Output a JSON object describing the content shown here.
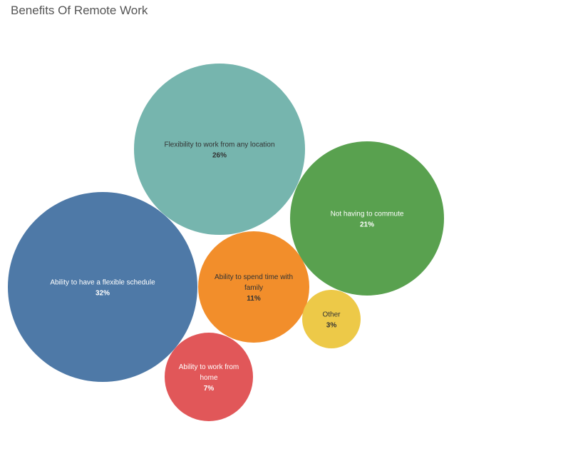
{
  "chart_data": {
    "type": "bubble",
    "title": "Benefits Of Remote Work",
    "series": [
      {
        "name": "Ability to have a flexible schedule",
        "value_label": "32%",
        "value": 32,
        "color": "#4e79a7",
        "text_color": "#ffffff"
      },
      {
        "name": "Flexibility to work from any location",
        "value_label": "26%",
        "value": 26,
        "color": "#76b5ae",
        "text_color": "#333333"
      },
      {
        "name": "Not having to commute",
        "value_label": "21%",
        "value": 21,
        "color": "#59a14f",
        "text_color": "#ffffff"
      },
      {
        "name": "Ability to spend time with family",
        "value_label": "11%",
        "value": 11,
        "color": "#f28e2b",
        "text_color": "#333333"
      },
      {
        "name": "Ability to work from home",
        "value_label": "7%",
        "value": 7,
        "color": "#e15759",
        "text_color": "#ffffff"
      },
      {
        "name": "Other",
        "value_label": "3%",
        "value": 3,
        "color": "#edc948",
        "text_color": "#333333"
      }
    ]
  }
}
